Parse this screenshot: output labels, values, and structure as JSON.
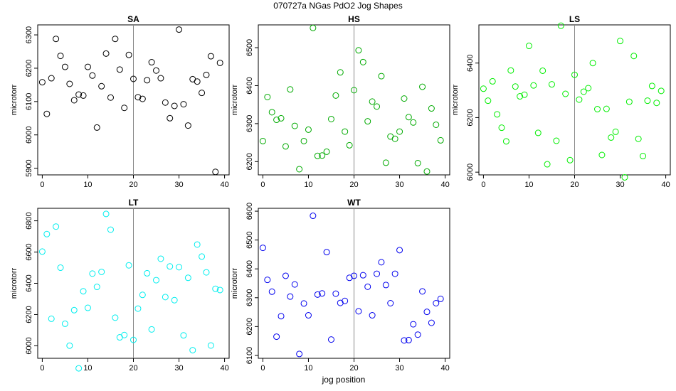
{
  "figure": {
    "title": "070727a   NGas PdO2 Jog Shapes",
    "xlabel": "jog position"
  },
  "chart_data": [
    {
      "type": "scatter",
      "title": "SA",
      "ylabel": "microtorr",
      "xlabel": "",
      "color": "#000000",
      "xlim": [
        -1,
        41
      ],
      "ylim": [
        5880,
        6330
      ],
      "xticks": [
        0,
        10,
        20,
        30,
        40
      ],
      "yticks": [
        5900,
        6000,
        6100,
        6200,
        6300
      ],
      "vline": 20,
      "grid": false,
      "x": [
        0,
        1,
        2,
        3,
        4,
        5,
        6,
        7,
        8,
        9,
        10,
        11,
        12,
        13,
        14,
        15,
        16,
        17,
        18,
        19,
        20,
        21,
        22,
        23,
        24,
        25,
        26,
        27,
        28,
        29,
        30,
        31,
        32,
        33,
        34,
        35,
        36,
        37,
        38,
        39
      ],
      "y": [
        6158,
        6063,
        6170,
        6288,
        6237,
        6204,
        6153,
        6104,
        6121,
        6118,
        6204,
        6178,
        6022,
        6146,
        6244,
        6112,
        6288,
        6196,
        6081,
        6240,
        6168,
        6113,
        6108,
        6164,
        6218,
        6193,
        6170,
        6097,
        6050,
        6087,
        6316,
        6092,
        6028,
        6167,
        6160,
        6126,
        6180,
        6236,
        5889,
        6216
      ]
    },
    {
      "type": "scatter",
      "title": "HS",
      "ylabel": "microtorr",
      "xlabel": "",
      "color": "#00aa00",
      "xlim": [
        -1,
        41
      ],
      "ylim": [
        6165,
        6560
      ],
      "xticks": [
        0,
        10,
        20,
        30,
        40
      ],
      "yticks": [
        6200,
        6300,
        6400,
        6500
      ],
      "vline": 20,
      "grid": false,
      "x": [
        0,
        1,
        2,
        3,
        4,
        5,
        6,
        7,
        8,
        9,
        10,
        11,
        12,
        13,
        14,
        15,
        16,
        17,
        18,
        19,
        20,
        21,
        22,
        23,
        24,
        25,
        26,
        27,
        28,
        29,
        30,
        31,
        32,
        33,
        34,
        35,
        36,
        37,
        38,
        39
      ],
      "y": [
        6254,
        6370,
        6330,
        6310,
        6314,
        6240,
        6390,
        6294,
        6180,
        6254,
        6284,
        6552,
        6215,
        6216,
        6226,
        6312,
        6374,
        6435,
        6279,
        6243,
        6388,
        6493,
        6462,
        6306,
        6358,
        6345,
        6425,
        6197,
        6266,
        6260,
        6279,
        6366,
        6317,
        6303,
        6196,
        6397,
        6174,
        6340,
        6297,
        6256
      ]
    },
    {
      "type": "scatter",
      "title": "LS",
      "ylabel": "microtorr",
      "xlabel": "",
      "color": "#00ee00",
      "xlim": [
        -1,
        41
      ],
      "ylim": [
        5990,
        6540
      ],
      "xticks": [
        0,
        10,
        20,
        30,
        40
      ],
      "yticks": [
        6000,
        6200,
        6400
      ],
      "vline": 20,
      "grid": false,
      "x": [
        0,
        1,
        2,
        3,
        4,
        5,
        6,
        7,
        8,
        9,
        10,
        11,
        12,
        13,
        14,
        15,
        16,
        17,
        18,
        19,
        20,
        21,
        22,
        23,
        24,
        25,
        26,
        27,
        28,
        29,
        30,
        31,
        32,
        33,
        34,
        35,
        36,
        37,
        38,
        39
      ],
      "y": [
        6306,
        6262,
        6333,
        6212,
        6163,
        6113,
        6373,
        6314,
        6278,
        6284,
        6463,
        6318,
        6144,
        6372,
        6029,
        6322,
        6115,
        6537,
        6287,
        6044,
        6357,
        6266,
        6295,
        6308,
        6400,
        6231,
        6063,
        6232,
        6127,
        6148,
        6481,
        5981,
        6258,
        6426,
        6122,
        6059,
        6262,
        6316,
        6254,
        6298
      ]
    },
    {
      "type": "scatter",
      "title": "LT",
      "ylabel": "microtorr",
      "xlabel": "",
      "color": "#00eeee",
      "xlim": [
        -1,
        41
      ],
      "ylim": [
        5920,
        6880
      ],
      "xticks": [
        0,
        10,
        20,
        30,
        40
      ],
      "yticks": [
        6000,
        6200,
        6400,
        6600,
        6800
      ],
      "vline": 20,
      "grid": false,
      "x": [
        0,
        1,
        2,
        3,
        4,
        5,
        6,
        7,
        8,
        9,
        10,
        11,
        12,
        13,
        14,
        15,
        16,
        17,
        18,
        19,
        20,
        21,
        22,
        23,
        24,
        25,
        26,
        27,
        28,
        29,
        30,
        31,
        32,
        33,
        34,
        35,
        36,
        37,
        38,
        39
      ],
      "y": [
        6603,
        6715,
        6173,
        6763,
        6500,
        6141,
        6001,
        6228,
        5856,
        6349,
        6243,
        6462,
        6377,
        6473,
        6844,
        6743,
        6180,
        6054,
        6069,
        6515,
        6038,
        6238,
        6326,
        6464,
        6105,
        6420,
        6557,
        6312,
        6508,
        6292,
        6503,
        6067,
        6435,
        5972,
        6648,
        6571,
        6470,
        6002,
        6365,
        6357
      ]
    },
    {
      "type": "scatter",
      "title": "WT",
      "ylabel": "microtorr",
      "xlabel": "",
      "color": "#0000ee",
      "xlim": [
        -1,
        41
      ],
      "ylim": [
        6090,
        6610
      ],
      "xticks": [
        0,
        10,
        20,
        30,
        40
      ],
      "yticks": [
        6100,
        6200,
        6300,
        6400,
        6500,
        6600
      ],
      "vline": 20,
      "grid": false,
      "x": [
        0,
        1,
        2,
        3,
        4,
        5,
        6,
        7,
        8,
        9,
        10,
        11,
        12,
        13,
        14,
        15,
        16,
        17,
        18,
        19,
        20,
        21,
        22,
        23,
        24,
        25,
        26,
        27,
        28,
        29,
        30,
        31,
        32,
        33,
        34,
        35,
        36,
        37,
        38,
        39
      ],
      "y": [
        6473,
        6362,
        6321,
        6165,
        6236,
        6376,
        6304,
        6346,
        6105,
        6280,
        6239,
        6584,
        6311,
        6315,
        6458,
        6155,
        6314,
        6282,
        6289,
        6369,
        6376,
        6253,
        6378,
        6338,
        6239,
        6383,
        6423,
        6344,
        6281,
        6383,
        6465,
        6152,
        6153,
        6208,
        6172,
        6322,
        6251,
        6213,
        6281,
        6296
      ]
    }
  ]
}
